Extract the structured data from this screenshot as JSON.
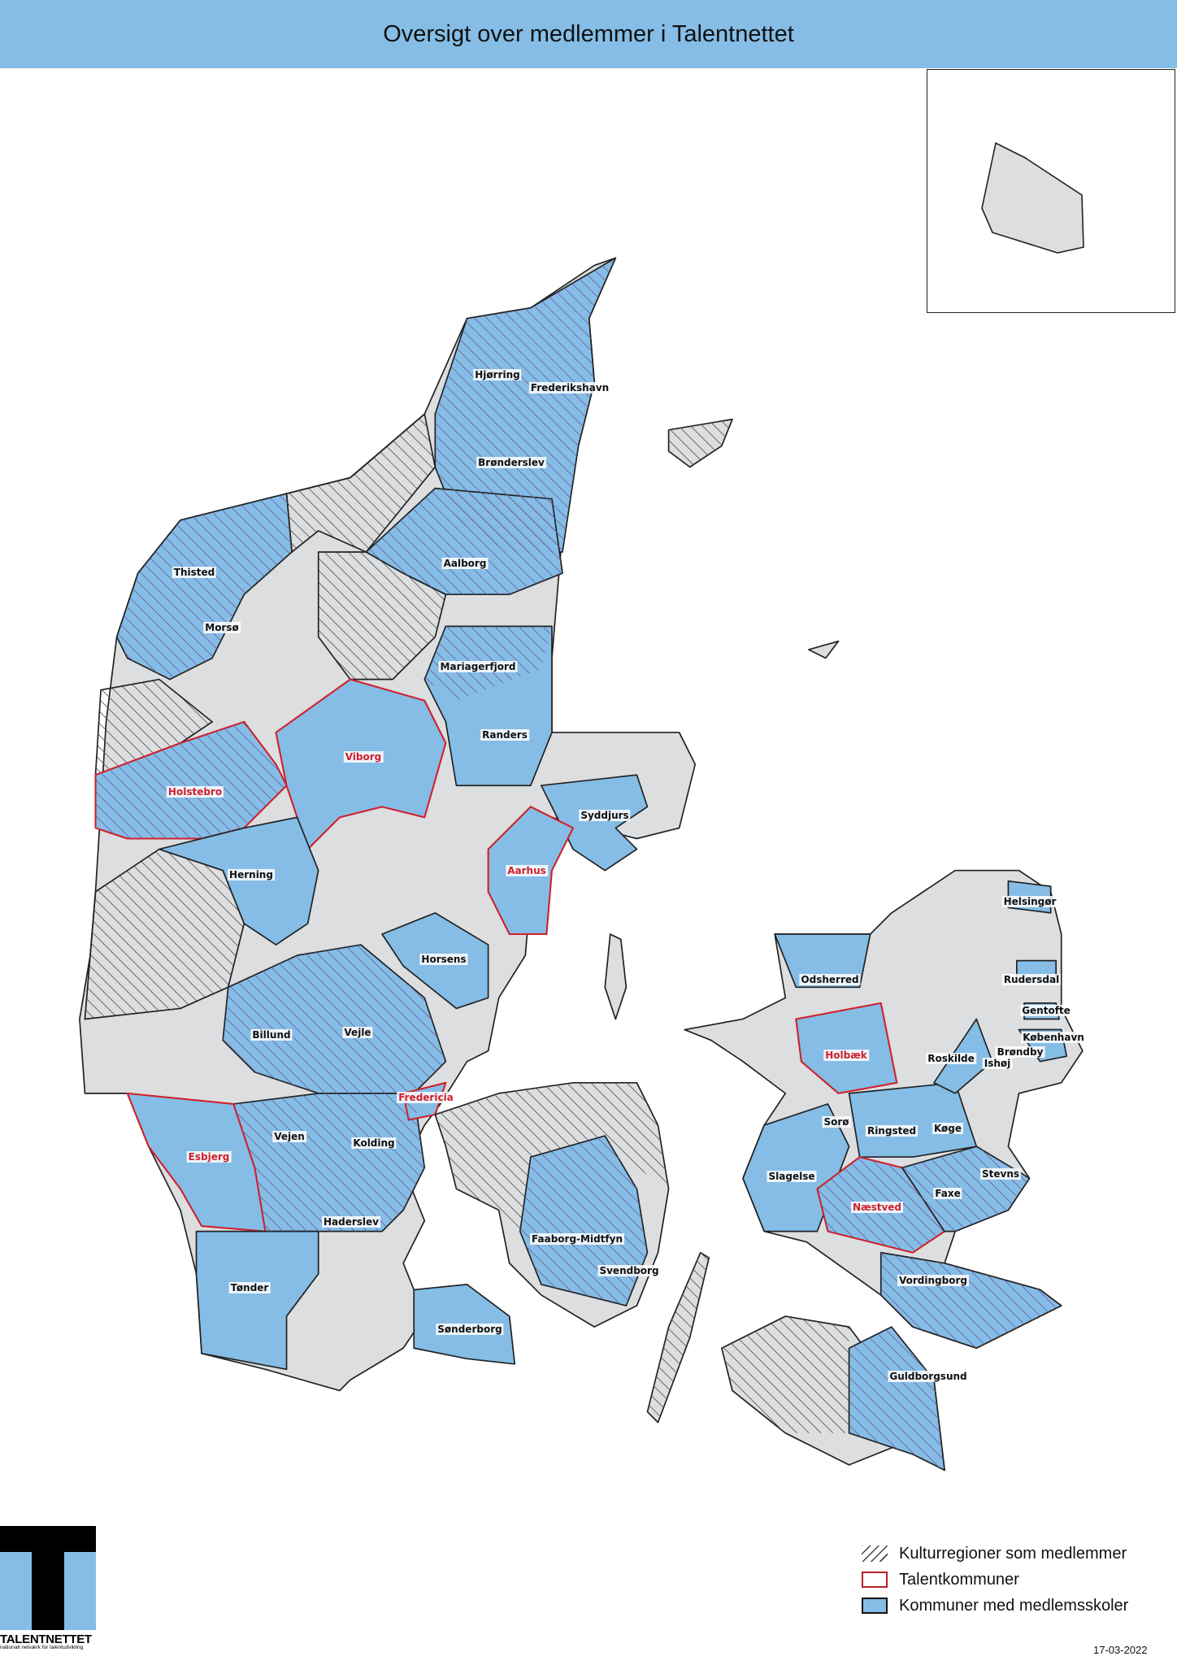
{
  "title": "Oversigt over medlemmer i Talentnettet",
  "colors": {
    "member_blue": "#85bde6",
    "non_member_grey": "#dcdee0",
    "talent_red": "#d0202a",
    "title_bar": "#85bde6"
  },
  "labels": [
    {
      "name": "Hjørring",
      "talent": false
    },
    {
      "name": "Frederikshavn",
      "talent": false
    },
    {
      "name": "Brønderslev",
      "talent": false
    },
    {
      "name": "Thisted",
      "talent": false
    },
    {
      "name": "Aalborg",
      "talent": false
    },
    {
      "name": "Morsø",
      "talent": false
    },
    {
      "name": "Mariagerfjord",
      "talent": false
    },
    {
      "name": "Randers",
      "talent": false
    },
    {
      "name": "Viborg",
      "talent": true
    },
    {
      "name": "Holstebro",
      "talent": true
    },
    {
      "name": "Syddjurs",
      "talent": false
    },
    {
      "name": "Herning",
      "talent": false
    },
    {
      "name": "Aarhus",
      "talent": true
    },
    {
      "name": "Helsingør",
      "talent": false
    },
    {
      "name": "Horsens",
      "talent": false
    },
    {
      "name": "Odsherred",
      "talent": false
    },
    {
      "name": "Rudersdal",
      "talent": false
    },
    {
      "name": "Gentofte",
      "talent": false
    },
    {
      "name": "Billund",
      "talent": false
    },
    {
      "name": "Vejle",
      "talent": false
    },
    {
      "name": "Holbæk",
      "talent": true
    },
    {
      "name": "Roskilde",
      "talent": false
    },
    {
      "name": "Ishøj",
      "talent": false
    },
    {
      "name": "København",
      "talent": false
    },
    {
      "name": "Brøndby",
      "talent": false
    },
    {
      "name": "Fredericia",
      "talent": true
    },
    {
      "name": "Sorø",
      "talent": false
    },
    {
      "name": "Ringsted",
      "talent": false
    },
    {
      "name": "Køge",
      "talent": false
    },
    {
      "name": "Vejen",
      "talent": false
    },
    {
      "name": "Kolding",
      "talent": false
    },
    {
      "name": "Esbjerg",
      "talent": true
    },
    {
      "name": "Stevns",
      "talent": false
    },
    {
      "name": "Slagelse",
      "talent": false
    },
    {
      "name": "Faxe",
      "talent": false
    },
    {
      "name": "Næstved",
      "talent": true
    },
    {
      "name": "Haderslev",
      "talent": false
    },
    {
      "name": "Faaborg-Midtfyn",
      "talent": false
    },
    {
      "name": "Svendborg",
      "talent": false
    },
    {
      "name": "Vordingborg",
      "talent": false
    },
    {
      "name": "Tønder",
      "talent": false
    },
    {
      "name": "Sønderborg",
      "talent": false
    },
    {
      "name": "Guldborgsund",
      "talent": false
    }
  ],
  "legend": [
    {
      "label": "Kulturregioner som medlemmer",
      "symbol": "hatch"
    },
    {
      "label": "Talentkommuner",
      "symbol": "red-outline"
    },
    {
      "label": "Kommuner med medlemsskoler",
      "symbol": "blue-fill"
    }
  ],
  "logo": {
    "name": "TALENTNETTET",
    "tagline": "nationalt netværk for talentudvikling"
  },
  "date": "17-03-2022"
}
